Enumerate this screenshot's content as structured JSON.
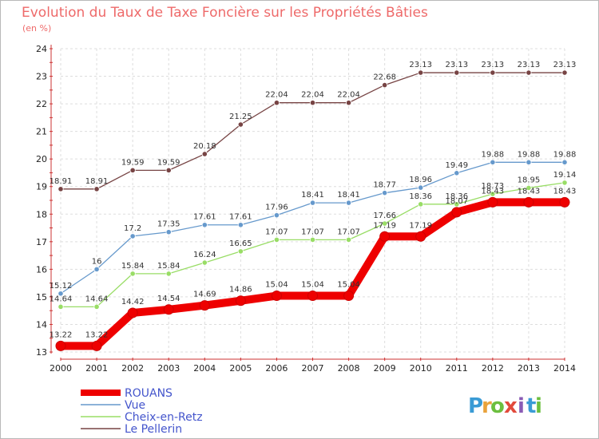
{
  "chart_data": {
    "type": "line",
    "title": "Evolution du Taux de Taxe Foncière sur les Propriétés Bâties",
    "subtitle": "(en %)",
    "x": [
      "2000",
      "2001",
      "2002",
      "2003",
      "2004",
      "2005",
      "2006",
      "2007",
      "2008",
      "2009",
      "2010",
      "2011",
      "2012",
      "2013",
      "2014"
    ],
    "ylim": [
      13,
      24
    ],
    "yticks": [
      "13",
      "14",
      "15",
      "16",
      "17",
      "18",
      "19",
      "20",
      "21",
      "22",
      "23",
      "24"
    ],
    "series": [
      {
        "name": "ROUANS",
        "color": "#ee0000",
        "values": [
          13.22,
          13.22,
          14.42,
          14.54,
          14.69,
          14.86,
          15.04,
          15.04,
          15.04,
          17.19,
          17.19,
          18.07,
          18.43,
          18.43,
          18.43
        ],
        "labels": [
          "13.22",
          "13.22",
          "14.42",
          "14.54",
          "14.69",
          "14.86",
          "15.04",
          "15.04",
          "15.04",
          "17.19",
          "17.19",
          "18.07",
          "18.43",
          "18.43",
          "18.43"
        ]
      },
      {
        "name": "Vue",
        "color": "#6699cc",
        "values": [
          15.12,
          16,
          17.2,
          17.35,
          17.61,
          17.61,
          17.96,
          18.41,
          18.41,
          18.77,
          18.96,
          19.49,
          19.88,
          19.88,
          19.88
        ],
        "labels": [
          "15.12",
          "16",
          "17.2",
          "17.35",
          "17.61",
          "17.61",
          "17.96",
          "18.41",
          "18.41",
          "18.77",
          "18.96",
          "19.49",
          "19.88",
          "19.88",
          "19.88"
        ]
      },
      {
        "name": "Cheix-en-Retz",
        "color": "#99dd66",
        "values": [
          14.64,
          14.64,
          15.84,
          15.84,
          16.24,
          16.65,
          17.07,
          17.07,
          17.07,
          17.66,
          18.36,
          18.36,
          18.73,
          18.95,
          19.14
        ],
        "labels": [
          "14.64",
          "14.64",
          "15.84",
          "15.84",
          "16.24",
          "16.65",
          "17.07",
          "17.07",
          "17.07",
          "17.66",
          "18.36",
          "18.36",
          "18.73",
          "18.95",
          "19.14"
        ]
      },
      {
        "name": "Le Pellerin",
        "color": "#774444",
        "values": [
          18.91,
          18.91,
          19.59,
          19.59,
          20.18,
          21.25,
          22.04,
          22.04,
          22.04,
          22.68,
          23.13,
          23.13,
          23.13,
          23.13,
          23.13
        ],
        "labels": [
          "18.91",
          "18.91",
          "19.59",
          "19.59",
          "20.18",
          "21.25",
          "22.04",
          "22.04",
          "22.04",
          "22.68",
          "23.13",
          "23.13",
          "23.13",
          "23.13",
          "23.13"
        ]
      }
    ],
    "legend": [
      "ROUANS",
      "Vue",
      "Cheix-en-Retz",
      "Le Pellerin"
    ],
    "legend_position": "bottom-left",
    "grid": true
  },
  "brand": {
    "logo_text": "Proxiti",
    "letters": [
      "P",
      "r",
      "o",
      "x",
      "i",
      "t",
      "i"
    ],
    "letter_colors": [
      "#3a9bd5",
      "#e9a23b",
      "#6cbf3f",
      "#e24a3b",
      "#8a5bb5",
      "#3a9bd5",
      "#6cbf3f"
    ]
  }
}
